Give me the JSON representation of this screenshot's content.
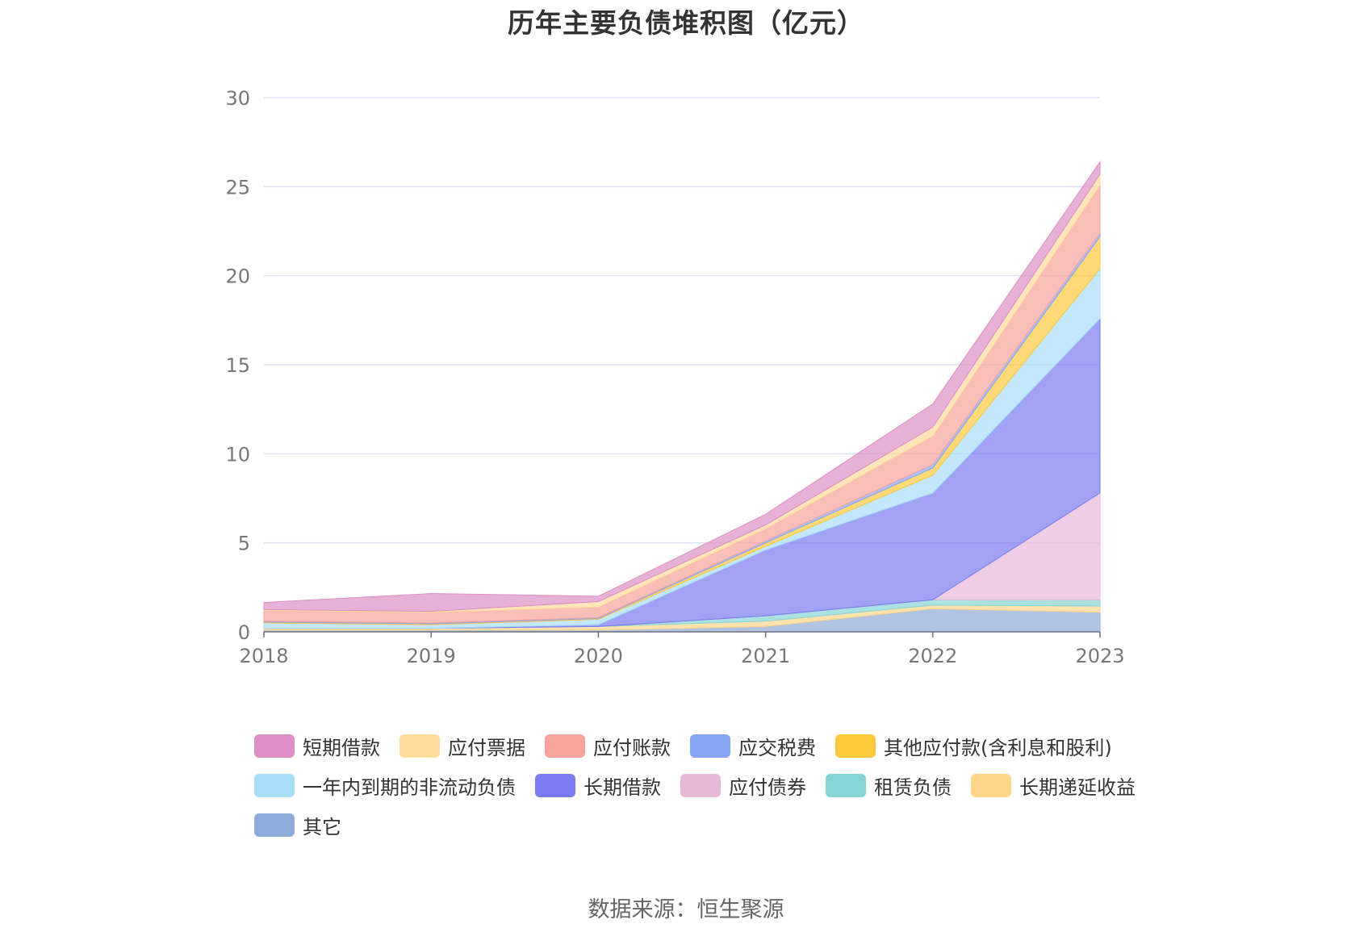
{
  "title": "历年主要负债堆积图（亿元）",
  "source": "数据来源：恒生聚源",
  "chart_data": {
    "type": "area",
    "stacked": true,
    "categories": [
      "2018",
      "2019",
      "2020",
      "2021",
      "2022",
      "2023"
    ],
    "ylim": [
      0,
      30
    ],
    "yticks": [
      0,
      5,
      10,
      15,
      20,
      25,
      30
    ],
    "grid": true,
    "legend_position": "bottom",
    "series": [
      {
        "name": "其它",
        "color": "#8eacd9",
        "values": [
          0.1,
          0.1,
          0.1,
          0.3,
          1.3,
          1.1
        ]
      },
      {
        "name": "长期递延收益",
        "color": "#ffd68a",
        "values": [
          0.1,
          0.1,
          0.2,
          0.3,
          0.2,
          0.35
        ]
      },
      {
        "name": "租赁负债",
        "color": "#86d5d6",
        "values": [
          0,
          0,
          0,
          0.3,
          0.3,
          0.35
        ]
      },
      {
        "name": "应付债券",
        "color": "#e8b8d8",
        "values": [
          0,
          0,
          0,
          0,
          0,
          6.0
        ]
      },
      {
        "name": "长期借款",
        "color": "#7b7bf0",
        "values": [
          0,
          0,
          0.1,
          3.7,
          6.0,
          9.8
        ]
      },
      {
        "name": "一年内到期的非流动负债",
        "color": "#a9def9",
        "values": [
          0.3,
          0.2,
          0.3,
          0.2,
          1.0,
          2.8
        ]
      },
      {
        "name": "其他应付款(含利息和股利)",
        "color": "#ffc83d",
        "values": [
          0.05,
          0.05,
          0.05,
          0.2,
          0.4,
          1.8
        ]
      },
      {
        "name": "应交税费",
        "color": "#87a4f5",
        "values": [
          0.05,
          0.05,
          0.05,
          0.1,
          0.2,
          0.2
        ]
      },
      {
        "name": "应付账款",
        "color": "#f8a39b",
        "values": [
          0.6,
          0.6,
          0.6,
          0.7,
          1.6,
          2.7
        ]
      },
      {
        "name": "应付票据",
        "color": "#ffdc9c",
        "values": [
          0.05,
          0.05,
          0.3,
          0.2,
          0.5,
          0.6
        ]
      },
      {
        "name": "短期借款",
        "color": "#dd8ec4",
        "values": [
          0.4,
          1.0,
          0.3,
          0.6,
          1.3,
          0.7
        ]
      }
    ]
  },
  "legend_rows": [
    [
      {
        "label": "短期借款",
        "color": "#dd8ec4"
      },
      {
        "label": "应付票据",
        "color": "#ffdc9c"
      },
      {
        "label": "应付账款",
        "color": "#f8a39b"
      },
      {
        "label": "应交税费",
        "color": "#87a4f5"
      },
      {
        "label": "其他应付款(含利息和股利)",
        "color": "#ffc83d"
      }
    ],
    [
      {
        "label": "一年内到期的非流动负债",
        "color": "#a9def9"
      },
      {
        "label": "长期借款",
        "color": "#7b7bf0"
      },
      {
        "label": "应付债券",
        "color": "#e8b8d8"
      },
      {
        "label": "租赁负债",
        "color": "#86d5d6"
      },
      {
        "label": "长期递延收益",
        "color": "#ffd68a"
      }
    ],
    [
      {
        "label": "其它",
        "color": "#8eacd9"
      }
    ]
  ]
}
